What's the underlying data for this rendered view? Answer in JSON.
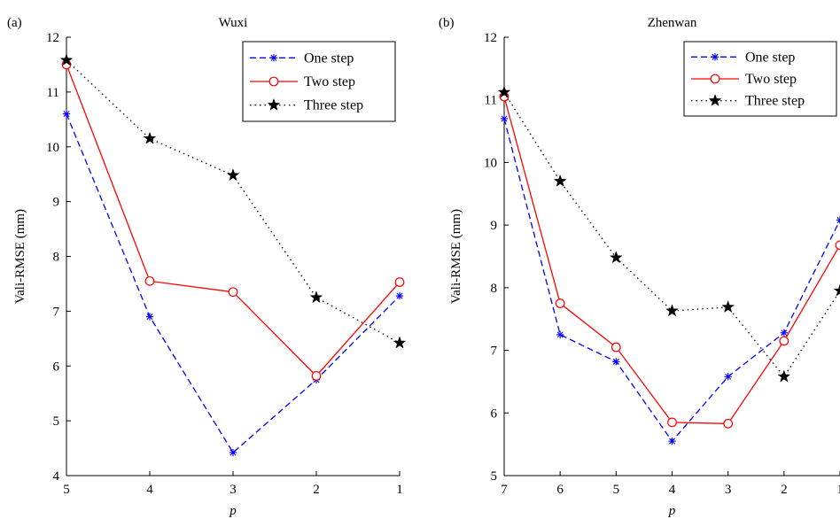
{
  "figure": {
    "background": "#ffffff"
  },
  "chart_data": [
    {
      "type": "line",
      "panel_label": "(a)",
      "title": "Wuxi",
      "xlabel": "p",
      "ylabel": "Vali-RMSE (mm)",
      "categories": [
        "5",
        "4",
        "3",
        "2",
        "1"
      ],
      "ylim": [
        4,
        12
      ],
      "yticks": [
        "4",
        "5",
        "6",
        "7",
        "8",
        "9",
        "10",
        "11",
        "12"
      ],
      "grid": false,
      "legend_position": "top-right",
      "series": [
        {
          "name": "One step",
          "color": "#0000ff",
          "dash": "dashed",
          "marker": "asterisk",
          "values": [
            10.6,
            6.9,
            4.42,
            5.75,
            7.28
          ]
        },
        {
          "name": "Two step",
          "color": "#ff0000",
          "dash": "solid",
          "marker": "circle",
          "values": [
            11.5,
            7.55,
            7.35,
            5.82,
            7.53
          ]
        },
        {
          "name": "Three step",
          "color": "#000000",
          "dash": "dotted",
          "marker": "star",
          "values": [
            11.58,
            10.15,
            9.48,
            7.25,
            6.42
          ]
        }
      ]
    },
    {
      "type": "line",
      "panel_label": "(b)",
      "title": "Zhenwan",
      "xlabel": "p",
      "ylabel": "Vali-RMSE (mm)",
      "categories": [
        "7",
        "6",
        "5",
        "4",
        "3",
        "2",
        "1"
      ],
      "ylim": [
        5,
        12
      ],
      "yticks": [
        "5",
        "6",
        "7",
        "8",
        "9",
        "10",
        "11",
        "12"
      ],
      "grid": false,
      "legend_position": "top-right",
      "series": [
        {
          "name": "One step",
          "color": "#0000ff",
          "dash": "dashed",
          "marker": "asterisk",
          "values": [
            10.7,
            7.25,
            6.82,
            5.55,
            6.58,
            7.28,
            9.08
          ]
        },
        {
          "name": "Two step",
          "color": "#ff0000",
          "dash": "solid",
          "marker": "circle",
          "values": [
            11.05,
            7.75,
            7.05,
            5.85,
            5.83,
            7.15,
            8.68
          ]
        },
        {
          "name": "Three step",
          "color": "#000000",
          "dash": "dotted",
          "marker": "star",
          "values": [
            11.12,
            9.7,
            8.48,
            7.63,
            7.69,
            6.58,
            7.95
          ]
        }
      ]
    }
  ]
}
